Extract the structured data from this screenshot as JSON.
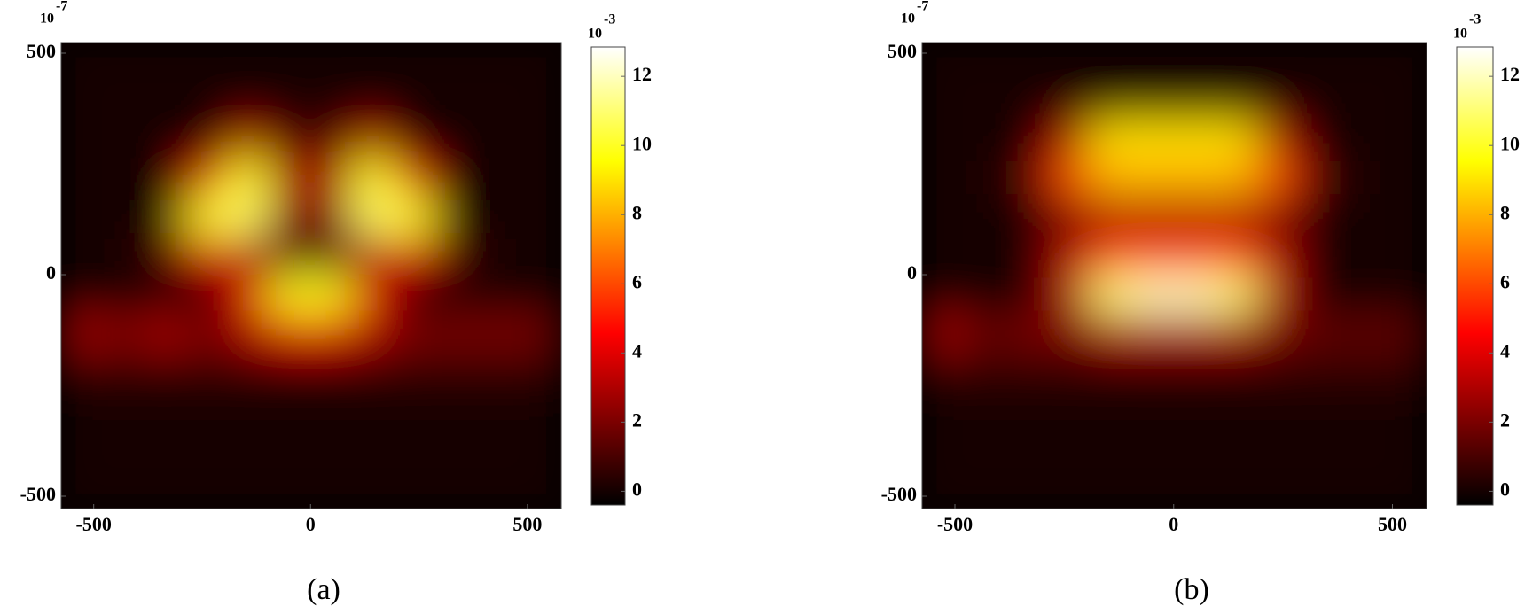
{
  "chart_data": [
    {
      "type": "heatmap",
      "colormap": "hot",
      "caption": "(a)",
      "x": [
        -527,
        -431,
        -335,
        -239,
        -143,
        -47,
        49,
        145,
        241,
        337,
        433,
        529
      ],
      "y": [
        480,
        392,
        305,
        217,
        129,
        41,
        -46,
        -134,
        -222,
        -309,
        -397,
        -485
      ],
      "z": [
        [
          0,
          0,
          0,
          0,
          0,
          0,
          0,
          0,
          0,
          0,
          0,
          0
        ],
        [
          0,
          0,
          0,
          0,
          0,
          0,
          0,
          0,
          0,
          0,
          0,
          0
        ],
        [
          0,
          0,
          0,
          0,
          3,
          1,
          1,
          3,
          0,
          0,
          0,
          0
        ],
        [
          0,
          0,
          0,
          4,
          10,
          3,
          3,
          10,
          4,
          0,
          0,
          0
        ],
        [
          0,
          0,
          0,
          10,
          11,
          2,
          2,
          11,
          10,
          0,
          0,
          0
        ],
        [
          0,
          0,
          1,
          4,
          3,
          1,
          1,
          3,
          4,
          1,
          0,
          0
        ],
        [
          0,
          0,
          0,
          0,
          4,
          10,
          10,
          4,
          0,
          0,
          0,
          0
        ],
        [
          3,
          2,
          3,
          2,
          3,
          4,
          4,
          3,
          2,
          2,
          2,
          2
        ],
        [
          0.5,
          0.5,
          0.5,
          0.5,
          0.5,
          0.5,
          0.5,
          0.5,
          0.5,
          0.5,
          0.5,
          0.5
        ],
        [
          0,
          0,
          0,
          0,
          0,
          0,
          0,
          0,
          0,
          0,
          0,
          0
        ],
        [
          0,
          0,
          0,
          0,
          0,
          0,
          0,
          0,
          0,
          0,
          0,
          0
        ],
        [
          0,
          0,
          0,
          0,
          0,
          0,
          0,
          0,
          0,
          0,
          0,
          0
        ]
      ],
      "xlim": [
        -575,
        578
      ],
      "ylim": [
        -528,
        524
      ],
      "xticks": [
        -500,
        0,
        500
      ],
      "yticks": [
        -500,
        0,
        500
      ],
      "zlim": [
        -0.4,
        12.85
      ],
      "zticks": [
        0,
        2,
        4,
        6,
        8,
        10,
        12
      ],
      "y_exponent": {
        "base": "10",
        "power": "-7"
      },
      "z_exponent": {
        "base": "10",
        "power": "-3"
      }
    },
    {
      "type": "heatmap",
      "colormap": "hot",
      "caption": "(b)",
      "x": [
        -527,
        -431,
        -335,
        -239,
        -143,
        -47,
        49,
        145,
        241,
        337,
        433,
        529
      ],
      "y": [
        480,
        392,
        305,
        217,
        129,
        41,
        -46,
        -134,
        -222,
        -309,
        -397,
        -485
      ],
      "z": [
        [
          0,
          0,
          0,
          0,
          0,
          0,
          0,
          0,
          0,
          0,
          0,
          0
        ],
        [
          0,
          0,
          0,
          0,
          0,
          0,
          0,
          0,
          0,
          0,
          0,
          0
        ],
        [
          0,
          0,
          0,
          3,
          9,
          9,
          9,
          9,
          3,
          0,
          0,
          0
        ],
        [
          0,
          0,
          1,
          6,
          8,
          8,
          8,
          8,
          6,
          1,
          0,
          0
        ],
        [
          0,
          0,
          0,
          2,
          3,
          3,
          3,
          3,
          2,
          0,
          0,
          0
        ],
        [
          0,
          0,
          0,
          3,
          6,
          6,
          6,
          6,
          3,
          0,
          0,
          0
        ],
        [
          0,
          0,
          0,
          3,
          11,
          12,
          12,
          11,
          3,
          0,
          0,
          0
        ],
        [
          3,
          1.5,
          2,
          2,
          3,
          3,
          3,
          3,
          2,
          1.5,
          1.5,
          1.5
        ],
        [
          0.5,
          0.5,
          0.5,
          0.5,
          0.5,
          0.5,
          0.5,
          0.5,
          0.5,
          0.5,
          0.5,
          0.5
        ],
        [
          0,
          0,
          0,
          0,
          0,
          0,
          0,
          0,
          0,
          0,
          0,
          0
        ],
        [
          0,
          0,
          0,
          0,
          0,
          0,
          0,
          0,
          0,
          0,
          0,
          0
        ],
        [
          0,
          0,
          0,
          0,
          0,
          0,
          0,
          0,
          0,
          0,
          0,
          0
        ]
      ],
      "xlim": [
        -575,
        578
      ],
      "ylim": [
        -528,
        524
      ],
      "xticks": [
        -500,
        0,
        500
      ],
      "yticks": [
        -500,
        0,
        500
      ],
      "zlim": [
        -0.4,
        12.85
      ],
      "zticks": [
        0,
        2,
        4,
        6,
        8,
        10,
        12
      ],
      "y_exponent": {
        "base": "10",
        "power": "-7"
      },
      "z_exponent": {
        "base": "10",
        "power": "-3"
      }
    }
  ]
}
